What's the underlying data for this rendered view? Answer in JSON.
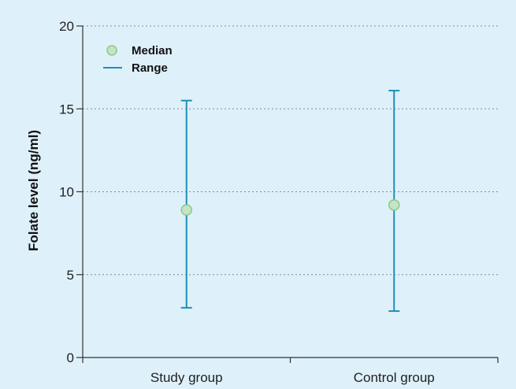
{
  "chart_data": {
    "type": "scatter",
    "title": "",
    "xlabel": "",
    "ylabel": "Folate level (ng/ml)",
    "ylim": [
      0,
      20
    ],
    "yticks": [
      0,
      5,
      10,
      15,
      20
    ],
    "categories": [
      "Study group",
      "Control group"
    ],
    "series": [
      {
        "name": "Median",
        "values": [
          8.9,
          9.2
        ]
      },
      {
        "name": "Range",
        "min": [
          3.0,
          2.8
        ],
        "max": [
          15.5,
          16.1
        ]
      }
    ],
    "grid": true,
    "legend_position": "top-left"
  },
  "colors": {
    "plot_background": "#def0fa",
    "gridline": "#8a8a8a",
    "axis": "#333333",
    "range_line": "#1e8fb7",
    "median_fill": "#c6e4c2",
    "median_stroke": "#8ec78a"
  }
}
